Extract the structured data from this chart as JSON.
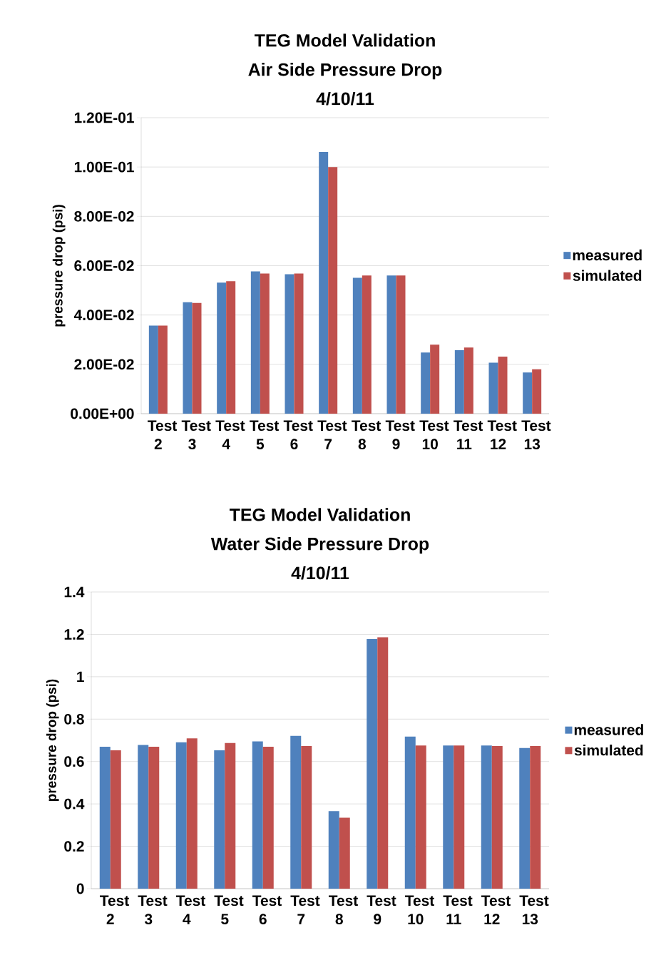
{
  "chart_data": [
    {
      "type": "bar",
      "title": "TEG Model Validation",
      "subtitle": "Air Side Pressure Drop",
      "annotations": [
        "4/10/11"
      ],
      "ylabel": "pressure drop (psi)",
      "categories": [
        "Test 2",
        "Test 3",
        "Test 4",
        "Test 5",
        "Test 6",
        "Test 7",
        "Test 8",
        "Test 9",
        "Test 10",
        "Test 11",
        "Test 12",
        "Test 13"
      ],
      "series": [
        {
          "name": "measured",
          "color": "#4f81bd",
          "values": [
            0.0357,
            0.0452,
            0.0531,
            0.0577,
            0.0565,
            0.1061,
            0.0551,
            0.056,
            0.0248,
            0.0257,
            0.0207,
            0.0167
          ]
        },
        {
          "name": "simulated",
          "color": "#c0504d",
          "values": [
            0.0357,
            0.0449,
            0.0537,
            0.0568,
            0.0568,
            0.1,
            0.056,
            0.056,
            0.028,
            0.0268,
            0.0231,
            0.018
          ]
        }
      ],
      "ylim": [
        0,
        0.12
      ],
      "yticks": [
        {
          "value": 0,
          "label": "0.00E+00"
        },
        {
          "value": 0.02,
          "label": "2.00E-02"
        },
        {
          "value": 0.04,
          "label": "4.00E-02"
        },
        {
          "value": 0.06,
          "label": "6.00E-02"
        },
        {
          "value": 0.08,
          "label": "8.00E-02"
        },
        {
          "value": 0.1,
          "label": "1.00E-01"
        },
        {
          "value": 0.12,
          "label": "1.20E-01"
        }
      ],
      "grid": "y",
      "legend": "right"
    },
    {
      "type": "bar",
      "title": "TEG Model Validation",
      "subtitle": "Water Side Pressure Drop",
      "annotations": [
        "4/10/11"
      ],
      "ylabel": "pressure drop (psi)",
      "categories": [
        "Test 2",
        "Test 3",
        "Test 4",
        "Test 5",
        "Test 6",
        "Test 7",
        "Test 8",
        "Test 9",
        "Test 10",
        "Test 11",
        "Test 12",
        "Test 13"
      ],
      "series": [
        {
          "name": "measured",
          "color": "#4f81bd",
          "values": [
            0.67,
            0.678,
            0.691,
            0.653,
            0.695,
            0.721,
            0.366,
            1.178,
            0.718,
            0.676,
            0.676,
            0.664
          ]
        },
        {
          "name": "simulated",
          "color": "#c0504d",
          "values": [
            0.653,
            0.67,
            0.709,
            0.687,
            0.67,
            0.673,
            0.335,
            1.186,
            0.676,
            0.676,
            0.673,
            0.673
          ]
        }
      ],
      "ylim": [
        0,
        1.4
      ],
      "yticks": [
        0,
        0.2,
        0.4,
        0.6,
        0.8,
        1,
        1.2,
        1.4
      ],
      "grid": "y",
      "legend": "right"
    }
  ]
}
